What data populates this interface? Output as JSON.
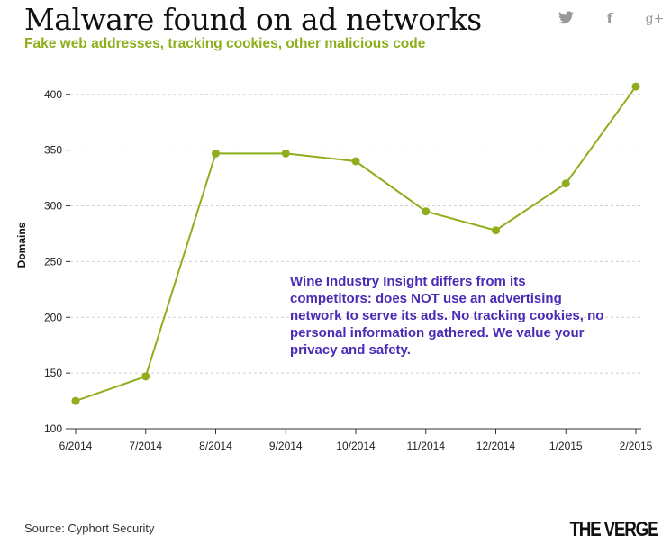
{
  "header": {
    "title": "Malware found on ad networks",
    "subtitle": "Fake web addresses, tracking cookies, other malicious code"
  },
  "social": {
    "twitter_icon": "twitter-icon",
    "facebook_icon": "facebook-icon",
    "facebook_glyph": "f",
    "gplus_icon": "google-plus-icon",
    "gplus_glyph": "g+"
  },
  "colors": {
    "line": "#8fae1b",
    "note": "#4a2bb5"
  },
  "chart_data": {
    "type": "line",
    "title": "Malware found on ad networks",
    "subtitle": "Fake web addresses, tracking cookies, other malicious code",
    "xlabel": "",
    "ylabel": "Domains",
    "categories": [
      "6/2014",
      "7/2014",
      "8/2014",
      "9/2014",
      "10/2014",
      "11/2014",
      "12/2014",
      "1/2015",
      "2/2015"
    ],
    "series": [
      {
        "name": "Domains",
        "values": [
          125,
          147,
          347,
          347,
          340,
          295,
          278,
          320,
          407
        ]
      }
    ],
    "ylim": [
      100,
      420
    ],
    "yticks": [
      100,
      150,
      200,
      250,
      300,
      350,
      400
    ],
    "grid": true
  },
  "annotation": {
    "text": "Wine Industry Insight differs from its competitors: does NOT use an advertising network to serve its ads. No tracking cookies, no personal information gathered. We value your privacy and safety."
  },
  "footer": {
    "source": "Source: Cyphort Security",
    "brand": "THE VERGE"
  }
}
